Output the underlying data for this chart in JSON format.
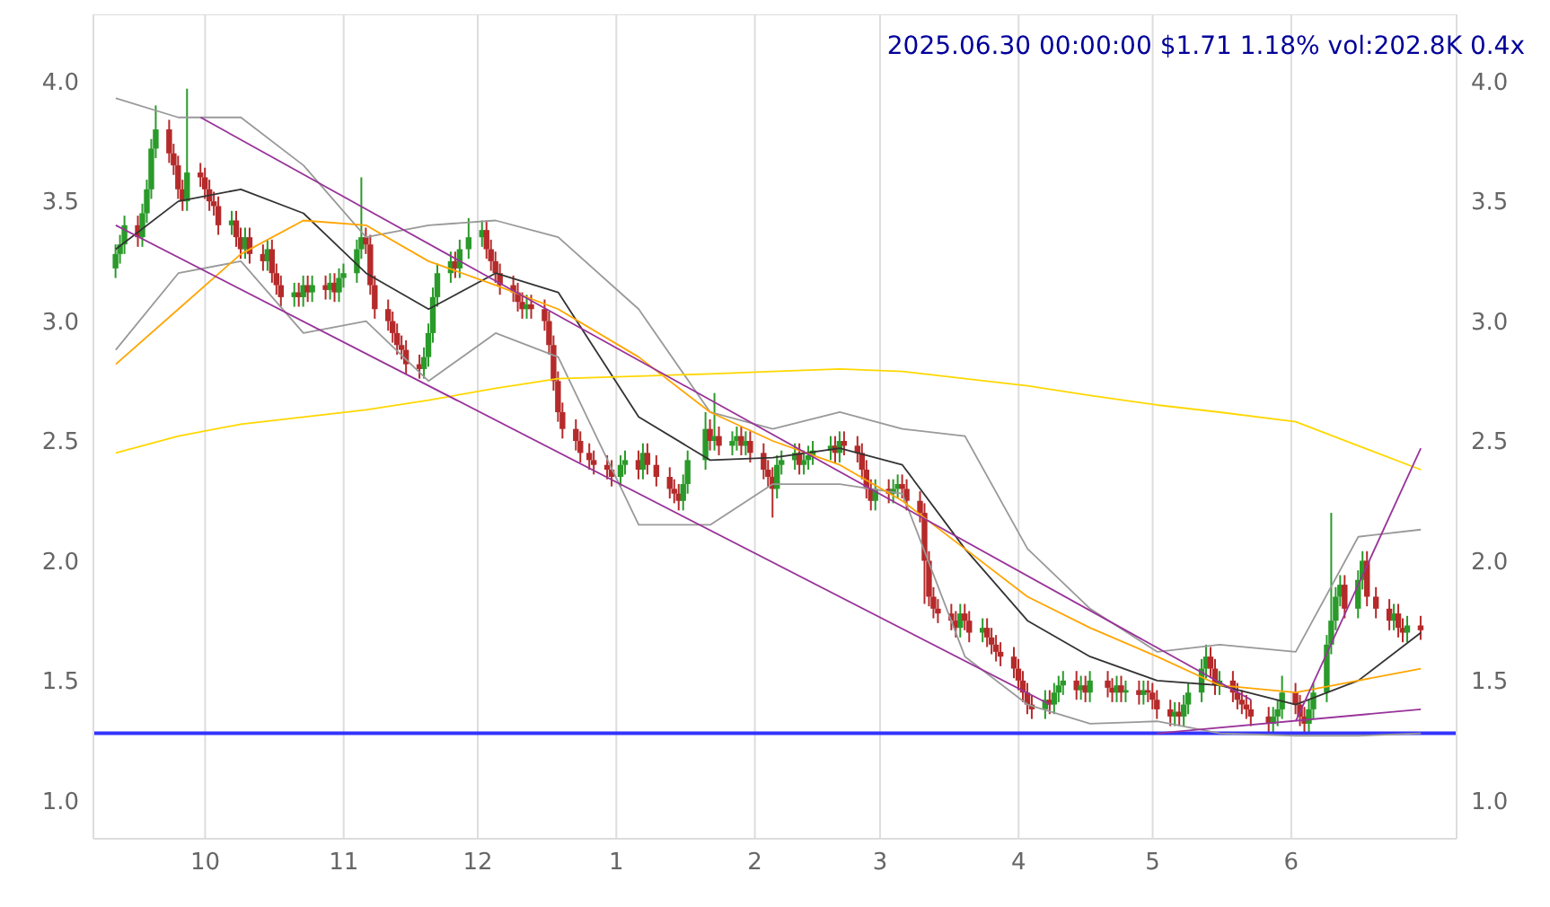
{
  "chart_data": {
    "type": "candlestick",
    "title": "2025.06.30 00:00:00 $1.71 1.18% vol:202.8K 0.4x",
    "x": [
      "2024-09-11",
      "2024-09-12",
      "2024-09-13",
      "2024-09-16",
      "2024-09-17",
      "2024-09-18",
      "2024-09-19",
      "2024-09-20",
      "2024-09-23",
      "2024-09-24",
      "2024-09-25",
      "2024-09-26",
      "2024-09-27",
      "2024-09-30",
      "2024-10-01",
      "2024-10-02",
      "2024-10-03",
      "2024-10-04",
      "2024-10-07",
      "2024-10-08",
      "2024-10-09",
      "2024-10-10",
      "2024-10-11",
      "2024-10-14",
      "2024-10-15",
      "2024-10-16",
      "2024-10-17",
      "2024-10-18",
      "2024-10-21",
      "2024-10-22",
      "2024-10-23",
      "2024-10-24",
      "2024-10-25",
      "2024-10-28",
      "2024-10-29",
      "2024-10-30",
      "2024-10-31",
      "2024-11-01",
      "2024-11-04",
      "2024-11-05",
      "2024-11-06",
      "2024-11-07",
      "2024-11-08",
      "2024-11-11",
      "2024-11-12",
      "2024-11-13",
      "2024-11-14",
      "2024-11-15",
      "2024-11-18",
      "2024-11-19",
      "2024-11-20",
      "2024-11-21",
      "2024-11-22",
      "2024-11-25",
      "2024-11-26",
      "2024-11-27",
      "2024-11-29",
      "2024-12-02",
      "2024-12-03",
      "2024-12-04",
      "2024-12-05",
      "2024-12-06",
      "2024-12-09",
      "2024-12-10",
      "2024-12-11",
      "2024-12-12",
      "2024-12-13",
      "2024-12-16",
      "2024-12-17",
      "2024-12-18",
      "2024-12-19",
      "2024-12-20",
      "2024-12-23",
      "2024-12-24",
      "2024-12-26",
      "2024-12-27",
      "2024-12-30",
      "2024-12-31",
      "2025-01-02",
      "2025-01-03",
      "2025-01-06",
      "2025-01-07",
      "2025-01-08",
      "2025-01-10",
      "2025-01-13",
      "2025-01-14",
      "2025-01-15",
      "2025-01-16",
      "2025-01-17",
      "2025-01-21",
      "2025-01-22",
      "2025-01-23",
      "2025-01-24",
      "2025-01-27",
      "2025-01-28",
      "2025-01-29",
      "2025-01-30",
      "2025-01-31",
      "2025-02-03",
      "2025-02-04",
      "2025-02-05",
      "2025-02-06",
      "2025-02-07",
      "2025-02-10",
      "2025-02-11",
      "2025-02-12",
      "2025-02-13",
      "2025-02-14",
      "2025-02-18",
      "2025-02-19",
      "2025-02-20",
      "2025-02-21",
      "2025-02-24",
      "2025-02-25",
      "2025-02-26",
      "2025-02-27",
      "2025-02-28",
      "2025-03-03",
      "2025-03-04",
      "2025-03-05",
      "2025-03-06",
      "2025-03-07",
      "2025-03-10",
      "2025-03-11",
      "2025-03-12",
      "2025-03-13",
      "2025-03-14",
      "2025-03-17",
      "2025-03-18",
      "2025-03-19",
      "2025-03-20",
      "2025-03-21",
      "2025-03-24",
      "2025-03-25",
      "2025-03-26",
      "2025-03-27",
      "2025-03-28",
      "2025-03-31",
      "2025-04-01",
      "2025-04-02",
      "2025-04-03",
      "2025-04-04",
      "2025-04-07",
      "2025-04-08",
      "2025-04-09",
      "2025-04-10",
      "2025-04-11",
      "2025-04-14",
      "2025-04-15",
      "2025-04-16",
      "2025-04-17",
      "2025-04-21",
      "2025-04-22",
      "2025-04-23",
      "2025-04-24",
      "2025-04-25",
      "2025-04-28",
      "2025-04-29",
      "2025-04-30",
      "2025-05-01",
      "2025-05-02",
      "2025-05-05",
      "2025-05-06",
      "2025-05-07",
      "2025-05-08",
      "2025-05-09",
      "2025-05-12",
      "2025-05-13",
      "2025-05-14",
      "2025-05-15",
      "2025-05-16",
      "2025-05-19",
      "2025-05-20",
      "2025-05-21",
      "2025-05-22",
      "2025-05-23",
      "2025-05-27",
      "2025-05-28",
      "2025-05-29",
      "2025-05-30",
      "2025-06-02",
      "2025-06-03",
      "2025-06-04",
      "2025-06-05",
      "2025-06-06",
      "2025-06-09",
      "2025-06-10",
      "2025-06-11",
      "2025-06-12",
      "2025-06-13",
      "2025-06-16",
      "2025-06-17",
      "2025-06-18",
      "2025-06-20",
      "2025-06-23",
      "2025-06-24",
      "2025-06-25",
      "2025-06-26",
      "2025-06-27",
      "2025-06-30"
    ],
    "ohlc": [
      [
        3.22,
        3.32,
        3.18,
        3.28
      ],
      [
        3.28,
        3.36,
        3.24,
        3.32
      ],
      [
        3.32,
        3.44,
        3.28,
        3.4
      ],
      [
        3.4,
        3.44,
        3.31,
        3.35
      ],
      [
        3.35,
        3.49,
        3.31,
        3.45
      ],
      [
        3.45,
        3.59,
        3.41,
        3.55
      ],
      [
        3.55,
        3.76,
        3.51,
        3.72
      ],
      [
        3.72,
        3.9,
        3.68,
        3.8
      ],
      [
        3.8,
        3.84,
        3.66,
        3.7
      ],
      [
        3.7,
        3.74,
        3.61,
        3.65
      ],
      [
        3.65,
        3.69,
        3.51,
        3.55
      ],
      [
        3.55,
        3.59,
        3.46,
        3.5
      ],
      [
        3.5,
        3.97,
        3.46,
        3.62
      ],
      [
        3.62,
        3.66,
        3.56,
        3.6
      ],
      [
        3.6,
        3.64,
        3.51,
        3.55
      ],
      [
        3.55,
        3.59,
        3.46,
        3.5
      ],
      [
        3.5,
        3.54,
        3.44,
        3.48
      ],
      [
        3.48,
        3.52,
        3.36,
        3.4
      ],
      [
        3.4,
        3.46,
        3.36,
        3.42
      ],
      [
        3.42,
        3.46,
        3.31,
        3.35
      ],
      [
        3.35,
        3.39,
        3.26,
        3.3
      ],
      [
        3.3,
        3.39,
        3.26,
        3.35
      ],
      [
        3.35,
        3.39,
        3.24,
        3.28
      ],
      [
        3.28,
        3.32,
        3.21,
        3.25
      ],
      [
        3.25,
        3.34,
        3.21,
        3.3
      ],
      [
        3.3,
        3.34,
        3.16,
        3.2
      ],
      [
        3.2,
        3.24,
        3.11,
        3.15
      ],
      [
        3.15,
        3.19,
        3.06,
        3.1
      ],
      [
        3.1,
        3.16,
        3.06,
        3.12
      ],
      [
        3.12,
        3.16,
        3.06,
        3.1
      ],
      [
        3.1,
        3.19,
        3.06,
        3.15
      ],
      [
        3.15,
        3.19,
        3.08,
        3.12
      ],
      [
        3.12,
        3.19,
        3.08,
        3.15
      ],
      [
        3.15,
        3.19,
        3.09,
        3.13
      ],
      [
        3.13,
        3.2,
        3.09,
        3.16
      ],
      [
        3.16,
        3.2,
        3.08,
        3.12
      ],
      [
        3.12,
        3.22,
        3.08,
        3.18
      ],
      [
        3.18,
        3.24,
        3.14,
        3.2
      ],
      [
        3.2,
        3.34,
        3.16,
        3.3
      ],
      [
        3.3,
        3.6,
        3.26,
        3.35
      ],
      [
        3.35,
        3.39,
        3.28,
        3.32
      ],
      [
        3.32,
        3.36,
        3.11,
        3.15
      ],
      [
        3.15,
        3.19,
        3.01,
        3.05
      ],
      [
        3.05,
        3.09,
        2.96,
        3.0
      ],
      [
        3.0,
        3.04,
        2.91,
        2.95
      ],
      [
        2.95,
        2.99,
        2.86,
        2.9
      ],
      [
        2.9,
        2.94,
        2.84,
        2.88
      ],
      [
        2.88,
        2.92,
        2.78,
        2.82
      ],
      [
        2.82,
        2.86,
        2.76,
        2.8
      ],
      [
        2.8,
        2.89,
        2.76,
        2.85
      ],
      [
        2.85,
        2.99,
        2.81,
        2.95
      ],
      [
        2.95,
        3.14,
        2.91,
        3.1
      ],
      [
        3.1,
        3.24,
        3.06,
        3.2
      ],
      [
        3.2,
        3.29,
        3.16,
        3.25
      ],
      [
        3.25,
        3.29,
        3.18,
        3.22
      ],
      [
        3.22,
        3.34,
        3.18,
        3.3
      ],
      [
        3.3,
        3.43,
        3.26,
        3.35
      ],
      [
        3.35,
        3.42,
        3.31,
        3.38
      ],
      [
        3.38,
        3.42,
        3.26,
        3.3
      ],
      [
        3.3,
        3.34,
        3.21,
        3.25
      ],
      [
        3.25,
        3.29,
        3.16,
        3.2
      ],
      [
        3.2,
        3.24,
        3.11,
        3.15
      ],
      [
        3.15,
        3.19,
        3.08,
        3.12
      ],
      [
        3.12,
        3.16,
        3.04,
        3.08
      ],
      [
        3.08,
        3.12,
        3.01,
        3.05
      ],
      [
        3.05,
        3.11,
        3.01,
        3.07
      ],
      [
        3.07,
        3.11,
        3.01,
        3.05
      ],
      [
        3.05,
        3.09,
        2.96,
        3.0
      ],
      [
        3.0,
        3.04,
        2.86,
        2.9
      ],
      [
        2.9,
        2.94,
        2.71,
        2.75
      ],
      [
        2.75,
        2.79,
        2.58,
        2.62
      ],
      [
        2.62,
        2.66,
        2.51,
        2.55
      ],
      [
        2.55,
        2.59,
        2.46,
        2.5
      ],
      [
        2.5,
        2.54,
        2.41,
        2.45
      ],
      [
        2.45,
        2.49,
        2.38,
        2.42
      ],
      [
        2.42,
        2.46,
        2.36,
        2.4
      ],
      [
        2.4,
        2.44,
        2.34,
        2.38
      ],
      [
        2.38,
        2.42,
        2.31,
        2.35
      ],
      [
        2.35,
        2.44,
        2.31,
        2.4
      ],
      [
        2.4,
        2.46,
        2.36,
        2.42
      ],
      [
        2.42,
        2.46,
        2.34,
        2.38
      ],
      [
        2.38,
        2.49,
        2.34,
        2.45
      ],
      [
        2.45,
        2.49,
        2.36,
        2.4
      ],
      [
        2.4,
        2.44,
        2.31,
        2.35
      ],
      [
        2.35,
        2.39,
        2.26,
        2.3
      ],
      [
        2.3,
        2.34,
        2.24,
        2.28
      ],
      [
        2.28,
        2.32,
        2.21,
        2.25
      ],
      [
        2.25,
        2.36,
        2.21,
        2.32
      ],
      [
        2.32,
        2.46,
        2.28,
        2.42
      ],
      [
        2.42,
        2.62,
        2.38,
        2.55
      ],
      [
        2.55,
        2.59,
        2.46,
        2.5
      ],
      [
        2.5,
        2.7,
        2.46,
        2.52
      ],
      [
        2.52,
        2.56,
        2.44,
        2.48
      ],
      [
        2.48,
        2.54,
        2.44,
        2.5
      ],
      [
        2.5,
        2.56,
        2.46,
        2.52
      ],
      [
        2.52,
        2.56,
        2.44,
        2.48
      ],
      [
        2.48,
        2.54,
        2.44,
        2.5
      ],
      [
        2.5,
        2.54,
        2.41,
        2.45
      ],
      [
        2.45,
        2.49,
        2.34,
        2.38
      ],
      [
        2.38,
        2.42,
        2.31,
        2.35
      ],
      [
        2.35,
        2.39,
        2.18,
        2.3
      ],
      [
        2.3,
        2.44,
        2.26,
        2.4
      ],
      [
        2.4,
        2.46,
        2.36,
        2.42
      ],
      [
        2.42,
        2.49,
        2.38,
        2.45
      ],
      [
        2.45,
        2.49,
        2.36,
        2.4
      ],
      [
        2.4,
        2.46,
        2.36,
        2.42
      ],
      [
        2.42,
        2.48,
        2.38,
        2.44
      ],
      [
        2.44,
        2.5,
        2.4,
        2.46
      ],
      [
        2.46,
        2.52,
        2.42,
        2.48
      ],
      [
        2.48,
        2.52,
        2.41,
        2.45
      ],
      [
        2.45,
        2.54,
        2.41,
        2.5
      ],
      [
        2.5,
        2.54,
        2.44,
        2.48
      ],
      [
        2.48,
        2.52,
        2.41,
        2.45
      ],
      [
        2.45,
        2.49,
        2.34,
        2.38
      ],
      [
        2.38,
        2.42,
        2.26,
        2.3
      ],
      [
        2.3,
        2.34,
        2.21,
        2.25
      ],
      [
        2.25,
        2.34,
        2.21,
        2.3
      ],
      [
        2.3,
        2.34,
        2.24,
        2.28
      ],
      [
        2.28,
        2.34,
        2.24,
        2.3
      ],
      [
        2.3,
        2.36,
        2.26,
        2.32
      ],
      [
        2.32,
        2.36,
        2.26,
        2.3
      ],
      [
        2.3,
        2.34,
        2.21,
        2.25
      ],
      [
        2.25,
        2.29,
        2.16,
        2.2
      ],
      [
        2.2,
        2.24,
        1.82,
        2.0
      ],
      [
        2.0,
        2.04,
        1.81,
        1.85
      ],
      [
        1.85,
        1.89,
        1.76,
        1.8
      ],
      [
        1.8,
        1.84,
        1.74,
        1.78
      ],
      [
        1.78,
        1.82,
        1.71,
        1.75
      ],
      [
        1.75,
        1.79,
        1.68,
        1.72
      ],
      [
        1.72,
        1.82,
        1.68,
        1.78
      ],
      [
        1.78,
        1.82,
        1.71,
        1.75
      ],
      [
        1.75,
        1.79,
        1.66,
        1.7
      ],
      [
        1.7,
        1.76,
        1.66,
        1.72
      ],
      [
        1.72,
        1.76,
        1.64,
        1.68
      ],
      [
        1.68,
        1.72,
        1.61,
        1.65
      ],
      [
        1.65,
        1.69,
        1.58,
        1.62
      ],
      [
        1.62,
        1.66,
        1.56,
        1.6
      ],
      [
        1.6,
        1.64,
        1.51,
        1.55
      ],
      [
        1.55,
        1.59,
        1.46,
        1.5
      ],
      [
        1.5,
        1.54,
        1.41,
        1.45
      ],
      [
        1.45,
        1.49,
        1.36,
        1.4
      ],
      [
        1.4,
        1.44,
        1.34,
        1.38
      ],
      [
        1.38,
        1.46,
        1.34,
        1.42
      ],
      [
        1.42,
        1.46,
        1.36,
        1.4
      ],
      [
        1.4,
        1.49,
        1.36,
        1.45
      ],
      [
        1.45,
        1.52,
        1.41,
        1.48
      ],
      [
        1.48,
        1.54,
        1.44,
        1.5
      ],
      [
        1.5,
        1.54,
        1.42,
        1.46
      ],
      [
        1.46,
        1.52,
        1.42,
        1.48
      ],
      [
        1.48,
        1.52,
        1.41,
        1.45
      ],
      [
        1.45,
        1.54,
        1.41,
        1.5
      ],
      [
        1.5,
        1.54,
        1.43,
        1.47
      ],
      [
        1.47,
        1.51,
        1.41,
        1.45
      ],
      [
        1.45,
        1.52,
        1.41,
        1.48
      ],
      [
        1.48,
        1.52,
        1.41,
        1.45
      ],
      [
        1.45,
        1.5,
        1.41,
        1.46
      ],
      [
        1.46,
        1.5,
        1.4,
        1.44
      ],
      [
        1.44,
        1.5,
        1.4,
        1.46
      ],
      [
        1.46,
        1.5,
        1.41,
        1.45
      ],
      [
        1.45,
        1.49,
        1.38,
        1.42
      ],
      [
        1.42,
        1.46,
        1.34,
        1.38
      ],
      [
        1.38,
        1.42,
        1.31,
        1.35
      ],
      [
        1.35,
        1.41,
        1.31,
        1.37
      ],
      [
        1.37,
        1.41,
        1.31,
        1.35
      ],
      [
        1.35,
        1.44,
        1.31,
        1.4
      ],
      [
        1.4,
        1.49,
        1.36,
        1.45
      ],
      [
        1.45,
        1.59,
        1.41,
        1.55
      ],
      [
        1.55,
        1.65,
        1.51,
        1.6
      ],
      [
        1.6,
        1.64,
        1.51,
        1.55
      ],
      [
        1.55,
        1.59,
        1.44,
        1.48
      ],
      [
        1.48,
        1.54,
        1.44,
        1.5
      ],
      [
        1.5,
        1.54,
        1.41,
        1.45
      ],
      [
        1.45,
        1.49,
        1.38,
        1.42
      ],
      [
        1.42,
        1.46,
        1.36,
        1.4
      ],
      [
        1.4,
        1.44,
        1.34,
        1.38
      ],
      [
        1.38,
        1.42,
        1.31,
        1.35
      ],
      [
        1.35,
        1.39,
        1.28,
        1.32
      ],
      [
        1.32,
        1.39,
        1.28,
        1.35
      ],
      [
        1.35,
        1.42,
        1.31,
        1.38
      ],
      [
        1.38,
        1.52,
        1.34,
        1.45
      ],
      [
        1.45,
        1.49,
        1.36,
        1.4
      ],
      [
        1.4,
        1.44,
        1.31,
        1.35
      ],
      [
        1.35,
        1.39,
        1.28,
        1.32
      ],
      [
        1.32,
        1.42,
        1.28,
        1.38
      ],
      [
        1.38,
        1.49,
        1.34,
        1.45
      ],
      [
        1.45,
        1.69,
        1.41,
        1.65
      ],
      [
        1.65,
        2.2,
        1.61,
        1.75
      ],
      [
        1.75,
        1.89,
        1.71,
        1.85
      ],
      [
        1.85,
        1.94,
        1.81,
        1.9
      ],
      [
        1.9,
        1.94,
        1.76,
        1.8
      ],
      [
        1.8,
        1.96,
        1.76,
        1.92
      ],
      [
        1.92,
        2.04,
        1.88,
        2.0
      ],
      [
        2.0,
        2.04,
        1.81,
        1.85
      ],
      [
        1.85,
        1.89,
        1.76,
        1.8
      ],
      [
        1.8,
        1.84,
        1.71,
        1.75
      ],
      [
        1.75,
        1.82,
        1.71,
        1.78
      ],
      [
        1.78,
        1.82,
        1.68,
        1.72
      ],
      [
        1.72,
        1.76,
        1.66,
        1.7
      ],
      [
        1.7,
        1.77,
        1.66,
        1.73
      ],
      [
        1.73,
        1.77,
        1.67,
        1.71
      ]
    ],
    "colors": [
      "#2a9a2a",
      "#2a9a2a",
      "#2a9a2a",
      "#b52a2a",
      "#2a9a2a",
      "#2a9a2a",
      "#2a9a2a",
      "#2a9a2a",
      "#b52a2a",
      "#b52a2a",
      "#b52a2a",
      "#b52a2a",
      "#2a9a2a",
      "#b52a2a",
      "#b52a2a",
      "#b52a2a",
      "#b52a2a",
      "#b52a2a",
      "#2a9a2a",
      "#b52a2a",
      "#b52a2a",
      "#2a9a2a",
      "#b52a2a",
      "#b52a2a",
      "#2a9a2a",
      "#b52a2a",
      "#b52a2a",
      "#b52a2a",
      "#2a9a2a",
      "#b52a2a",
      "#2a9a2a",
      "#b52a2a",
      "#2a9a2a",
      "#b52a2a",
      "#2a9a2a",
      "#b52a2a",
      "#2a9a2a",
      "#2a9a2a",
      "#2a9a2a",
      "#2a9a2a",
      "#b52a2a",
      "#b52a2a",
      "#b52a2a",
      "#b52a2a",
      "#b52a2a",
      "#b52a2a",
      "#b52a2a",
      "#b52a2a",
      "#b52a2a",
      "#2a9a2a",
      "#2a9a2a",
      "#2a9a2a",
      "#2a9a2a",
      "#2a9a2a",
      "#b52a2a",
      "#2a9a2a",
      "#2a9a2a",
      "#2a9a2a",
      "#b52a2a",
      "#b52a2a",
      "#b52a2a",
      "#b52a2a",
      "#b52a2a",
      "#b52a2a",
      "#b52a2a",
      "#2a9a2a",
      "#b52a2a",
      "#b52a2a",
      "#b52a2a",
      "#b52a2a",
      "#b52a2a",
      "#b52a2a",
      "#b52a2a",
      "#b52a2a",
      "#b52a2a",
      "#b52a2a",
      "#b52a2a",
      "#b52a2a",
      "#2a9a2a",
      "#2a9a2a",
      "#b52a2a",
      "#2a9a2a",
      "#b52a2a",
      "#b52a2a",
      "#b52a2a",
      "#b52a2a",
      "#b52a2a",
      "#2a9a2a",
      "#2a9a2a",
      "#2a9a2a",
      "#b52a2a",
      "#2a9a2a",
      "#b52a2a",
      "#2a9a2a",
      "#2a9a2a",
      "#b52a2a",
      "#2a9a2a",
      "#b52a2a",
      "#b52a2a",
      "#b52a2a",
      "#b52a2a",
      "#2a9a2a",
      "#2a9a2a",
      "#2a9a2a",
      "#b52a2a",
      "#2a9a2a",
      "#2a9a2a",
      "#2a9a2a",
      "#2a9a2a",
      "#b52a2a",
      "#2a9a2a",
      "#b52a2a",
      "#b52a2a",
      "#b52a2a",
      "#b52a2a",
      "#b52a2a",
      "#2a9a2a",
      "#b52a2a",
      "#2a9a2a",
      "#2a9a2a",
      "#b52a2a",
      "#b52a2a",
      "#b52a2a",
      "#b52a2a",
      "#b52a2a",
      "#b52a2a",
      "#b52a2a",
      "#b52a2a",
      "#b52a2a",
      "#2a9a2a",
      "#b52a2a",
      "#b52a2a",
      "#2a9a2a",
      "#b52a2a",
      "#b52a2a",
      "#b52a2a",
      "#b52a2a",
      "#b52a2a",
      "#b52a2a",
      "#b52a2a",
      "#b52a2a",
      "#b52a2a",
      "#2a9a2a",
      "#b52a2a",
      "#2a9a2a",
      "#2a9a2a",
      "#2a9a2a",
      "#b52a2a",
      "#2a9a2a",
      "#b52a2a",
      "#2a9a2a",
      "#b52a2a",
      "#b52a2a",
      "#2a9a2a",
      "#b52a2a",
      "#2a9a2a",
      "#b52a2a",
      "#2a9a2a",
      "#b52a2a",
      "#b52a2a",
      "#b52a2a",
      "#b52a2a",
      "#2a9a2a",
      "#b52a2a",
      "#2a9a2a",
      "#2a9a2a",
      "#2a9a2a",
      "#2a9a2a",
      "#b52a2a",
      "#b52a2a",
      "#2a9a2a",
      "#b52a2a",
      "#b52a2a",
      "#b52a2a",
      "#b52a2a",
      "#b52a2a",
      "#b52a2a",
      "#2a9a2a",
      "#2a9a2a",
      "#2a9a2a",
      "#b52a2a",
      "#b52a2a",
      "#b52a2a",
      "#2a9a2a",
      "#2a9a2a",
      "#2a9a2a",
      "#2a9a2a",
      "#2a9a2a",
      "#2a9a2a",
      "#b52a2a",
      "#2a9a2a",
      "#2a9a2a",
      "#b52a2a",
      "#b52a2a",
      "#b52a2a",
      "#2a9a2a",
      "#b52a2a",
      "#b52a2a",
      "#2a9a2a",
      "#b52a2a"
    ],
    "series": [
      {
        "type": "line",
        "color": "#333333",
        "x": [
          "2024-09-11",
          "2024-09-25",
          "2024-10-09",
          "2024-10-23",
          "2024-11-06",
          "2024-11-20",
          "2024-12-05",
          "2024-12-19",
          "2025-01-06",
          "2025-01-22",
          "2025-02-05",
          "2025-02-20",
          "2025-03-06",
          "2025-03-20",
          "2025-04-03",
          "2025-04-17",
          "2025-05-02",
          "2025-05-16",
          "2025-06-02",
          "2025-06-16",
          "2025-06-30"
        ],
        "values": [
          3.3,
          3.5,
          3.55,
          3.45,
          3.2,
          3.05,
          3.2,
          3.12,
          2.6,
          2.42,
          2.43,
          2.47,
          2.4,
          2.05,
          1.75,
          1.6,
          1.5,
          1.48,
          1.4,
          1.5,
          1.7
        ]
      },
      {
        "type": "line",
        "color": "#999999",
        "x": [
          "2024-09-11",
          "2024-09-25",
          "2024-10-09",
          "2024-10-23",
          "2024-11-06",
          "2024-11-20",
          "2024-12-05",
          "2024-12-19",
          "2025-01-06",
          "2025-01-22",
          "2025-02-05",
          "2025-02-20",
          "2025-03-06",
          "2025-03-20",
          "2025-04-03",
          "2025-04-17",
          "2025-05-02",
          "2025-05-16",
          "2025-06-02",
          "2025-06-16",
          "2025-06-30"
        ],
        "values": [
          3.93,
          3.85,
          3.85,
          3.65,
          3.35,
          3.4,
          3.42,
          3.35,
          3.05,
          2.62,
          2.55,
          2.62,
          2.55,
          2.52,
          2.05,
          1.8,
          1.62,
          1.65,
          1.62,
          2.1,
          2.13
        ]
      },
      {
        "type": "line",
        "color": "#999999",
        "x": [
          "2024-09-11",
          "2024-09-25",
          "2024-10-09",
          "2024-10-23",
          "2024-11-06",
          "2024-11-20",
          "2024-12-05",
          "2024-12-19",
          "2025-01-06",
          "2025-01-22",
          "2025-02-05",
          "2025-02-20",
          "2025-03-06",
          "2025-03-20",
          "2025-04-03",
          "2025-04-17",
          "2025-05-02",
          "2025-05-16",
          "2025-06-02",
          "2025-06-16",
          "2025-06-30"
        ],
        "values": [
          2.88,
          3.2,
          3.25,
          2.95,
          3.0,
          2.75,
          2.95,
          2.85,
          2.15,
          2.15,
          2.32,
          2.32,
          2.28,
          1.6,
          1.4,
          1.32,
          1.33,
          1.28,
          1.27,
          1.27,
          1.28
        ]
      },
      {
        "type": "line",
        "color": "#ffa500",
        "x": [
          "2024-09-11",
          "2024-09-25",
          "2024-10-09",
          "2024-10-23",
          "2024-11-06",
          "2024-11-20",
          "2024-12-05",
          "2024-12-19",
          "2025-01-06",
          "2025-01-22",
          "2025-02-05",
          "2025-02-20",
          "2025-03-06",
          "2025-03-20",
          "2025-04-03",
          "2025-04-17",
          "2025-05-02",
          "2025-05-16",
          "2025-06-02",
          "2025-06-16",
          "2025-06-30"
        ],
        "values": [
          2.82,
          3.05,
          3.28,
          3.42,
          3.4,
          3.25,
          3.15,
          3.05,
          2.85,
          2.62,
          2.5,
          2.4,
          2.25,
          2.05,
          1.85,
          1.72,
          1.6,
          1.48,
          1.45,
          1.5,
          1.55
        ]
      },
      {
        "type": "line",
        "color": "#ffd700",
        "x": [
          "2024-09-11",
          "2024-09-25",
          "2024-10-09",
          "2024-10-23",
          "2024-11-06",
          "2024-11-20",
          "2024-12-05",
          "2024-12-19",
          "2025-01-06",
          "2025-01-22",
          "2025-02-05",
          "2025-02-20",
          "2025-03-06",
          "2025-03-20",
          "2025-04-03",
          "2025-04-17",
          "2025-05-02",
          "2025-05-16",
          "2025-06-02",
          "2025-06-16",
          "2025-06-30"
        ],
        "values": [
          2.45,
          2.52,
          2.57,
          2.6,
          2.63,
          2.67,
          2.72,
          2.76,
          2.77,
          2.78,
          2.79,
          2.8,
          2.79,
          2.76,
          2.73,
          2.69,
          2.65,
          2.62,
          2.58,
          2.48,
          2.38
        ]
      },
      {
        "type": "line",
        "color": "#993399",
        "x": [
          "2024-09-30",
          "2025-05-23"
        ],
        "values": [
          3.85,
          1.42
        ]
      },
      {
        "type": "line",
        "color": "#993399",
        "x": [
          "2024-09-11",
          "2025-04-08"
        ],
        "values": [
          3.4,
          1.4
        ]
      },
      {
        "type": "line",
        "color": "#993399",
        "x": [
          "2025-05-02",
          "2025-06-30"
        ],
        "values": [
          1.28,
          1.38
        ]
      },
      {
        "type": "line",
        "color": "#993399",
        "x": [
          "2025-06-02",
          "2025-06-30"
        ],
        "values": [
          1.33,
          2.47
        ]
      }
    ],
    "ref_lines": [
      {
        "axis": "y",
        "value": 1.28,
        "color": "#3333ff"
      }
    ],
    "xlim": [
      "2024-09-06",
      "2025-07-08"
    ],
    "xticks": [
      {
        "value": "2024-10-01",
        "label": "10"
      },
      {
        "value": "2024-11-01",
        "label": "11"
      },
      {
        "value": "2024-12-01",
        "label": "12"
      },
      {
        "value": "2025-01-01",
        "label": "1"
      },
      {
        "value": "2025-02-01",
        "label": "2"
      },
      {
        "value": "2025-03-01",
        "label": "3"
      },
      {
        "value": "2025-04-01",
        "label": "4"
      },
      {
        "value": "2025-05-01",
        "label": "5"
      },
      {
        "value": "2025-06-01",
        "label": "6"
      }
    ],
    "ylim": [
      0.84,
      4.28
    ],
    "yticks": [
      {
        "value": 1,
        "label": "1.0"
      },
      {
        "value": 1.5,
        "label": "1.5"
      },
      {
        "value": 2,
        "label": "2.0"
      },
      {
        "value": 2.5,
        "label": "2.5"
      },
      {
        "value": 3,
        "label": "3.0"
      },
      {
        "value": 3.5,
        "label": "3.5"
      },
      {
        "value": 4,
        "label": "4.0"
      }
    ],
    "y2lim": [
      0.84,
      4.28
    ],
    "y2ticks": [
      {
        "value": 1,
        "label": "1.0"
      },
      {
        "value": 1.5,
        "label": "1.5"
      },
      {
        "value": 2,
        "label": "2.0"
      },
      {
        "value": 2.5,
        "label": "2.5"
      },
      {
        "value": 3,
        "label": "3.0"
      },
      {
        "value": 3.5,
        "label": "3.5"
      },
      {
        "value": 4,
        "label": "4.0"
      }
    ],
    "grid": true
  }
}
